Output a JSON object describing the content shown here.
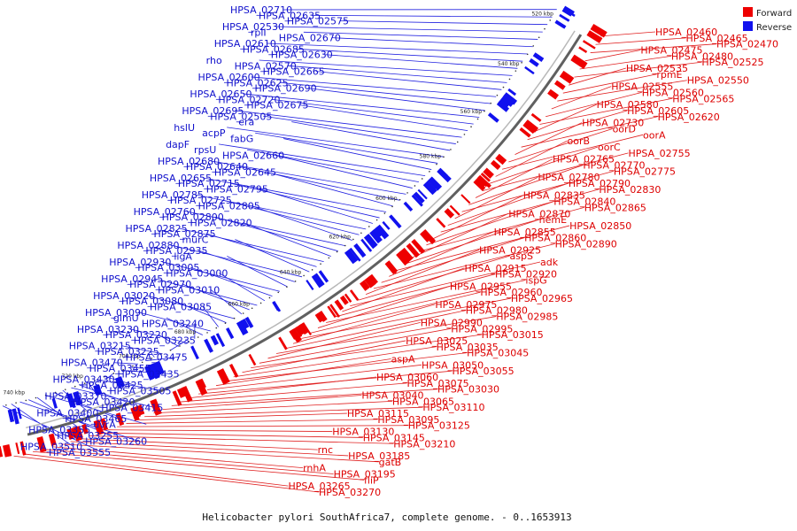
{
  "caption": "Helicobacter pylori SouthAfrica7, complete genome. - 0..1653913",
  "legend": {
    "forward_label": "Forward",
    "reverse_label": "Reverse",
    "forward_color": "#ee0000",
    "reverse_color": "#1111ee"
  },
  "tick_labels": [
    "520 kbp",
    "540 kbp",
    "560 kbp",
    "580 kbp",
    "600 kbp",
    "620 kbp",
    "640 kbp",
    "660 kbp",
    "680 kbp",
    "700 kbp",
    "720 kbp",
    "740 kbp"
  ],
  "forward_genes": [
    "HPSA_02460",
    "HPSA_02465",
    "HPSA_02470",
    "HPSA_02475",
    "HPSA_02480",
    "HPSA_02525",
    "HPSA_02535",
    "rpmE",
    "HPSA_02550",
    "HPSA_02555",
    "HPSA_02560",
    "HPSA_02565",
    "HPSA_02580",
    "HPSA_02605",
    "HPSA_02620",
    "HPSA_02730",
    "oorD",
    "oorA",
    "oorB",
    "oorC",
    "HPSA_02755",
    "HPSA_02765",
    "HPSA_02770",
    "HPSA_02775",
    "HPSA_02780",
    "HPSA_02790",
    "HPSA_02830",
    "HPSA_02835",
    "HPSA_02840",
    "HPSA_02865",
    "HPSA_02870",
    "hemE",
    "HPSA_02850",
    "HPSA_02855",
    "HPSA_02860",
    "HPSA_02890",
    "HPSA_02925",
    "aspS",
    "adk",
    "HPSA_02915",
    "HPSA_02920",
    "ispG",
    "HPSA_02955",
    "HPSA_02960",
    "HPSA_02965",
    "HPSA_02975",
    "HPSA_02980",
    "HPSA_02985",
    "HPSA_02990",
    "HPSA_02995",
    "HPSA_03015",
    "HPSA_03025",
    "HPSA_03035",
    "HPSA_03045",
    "aspA",
    "HPSA_03050",
    "HPSA_03055",
    "HPSA_03060",
    "HPSA_03075",
    "HPSA_03030",
    "HPSA_03040",
    "HPSA_03065",
    "HPSA_03110",
    "HPSA_03115",
    "HPSA_03095",
    "HPSA_03125",
    "HPSA_03130",
    "HPSA_03145",
    "HPSA_03210",
    "rnc",
    "HPSA_03185",
    "gatB",
    "rnhA",
    "HPSA_03195",
    "fliP",
    "HPSA_03265",
    "HPSA_03270"
  ],
  "reverse_genes": [
    "HPSA_02710",
    "HPSA_02635",
    "HPSA_02575",
    "HPSA_02530",
    "rplI",
    "HPSA_02670",
    "HPSA_02610",
    "HPSA_02685",
    "HPSA_02630",
    "rho",
    "HPSA_02570",
    "HPSA_02665",
    "HPSA_02600",
    "HPSA_02625",
    "HPSA_02690",
    "HPSA_02650",
    "HPSA_02720",
    "HPSA_02675",
    "HPSA_02695",
    "HPSA_02505",
    "era",
    "hslU",
    "acpP",
    "fabG",
    "dapF",
    "rpsU",
    "HPSA_02660",
    "HPSA_02680",
    "HPSA_02640",
    "HPSA_02645",
    "HPSA_02655",
    "HPSA_02715",
    "HPSA_02795",
    "HPSA_02785",
    "HPSA_02725",
    "HPSA_02805",
    "HPSA_02760",
    "HPSA_02800",
    "HPSA_02820",
    "HPSA_02825",
    "HPSA_02875",
    "murC",
    "HPSA_02880",
    "HPSA_02935",
    "ligA",
    "HPSA_02930",
    "HPSA_03005",
    "HPSA_03000",
    "HPSA_02945",
    "HPSA_02970",
    "HPSA_03010",
    "HPSA_03020",
    "HPSA_03080",
    "HPSA_03085",
    "HPSA_03090",
    "glmU",
    "HPSA_03240",
    "HPSA_03230",
    "HPSA_03220",
    "HPSA_03235",
    "HPSA_03215",
    "HPSA_03225",
    "HPSA_03475",
    "HPSA_03470",
    "HPSA_03455",
    "HPSA_03435",
    "HPSA_03430",
    "HPSA_03425",
    "HPSA_03505",
    "HPSA_03370",
    "HPSA_03420",
    "HPSA_03415",
    "HPSA_03400",
    "HPSA_03465",
    "uvrA",
    "HPSA_03355",
    "HPSA_03255",
    "HPSA_03260",
    "HPSA_03510",
    "HPSA_03555"
  ]
}
